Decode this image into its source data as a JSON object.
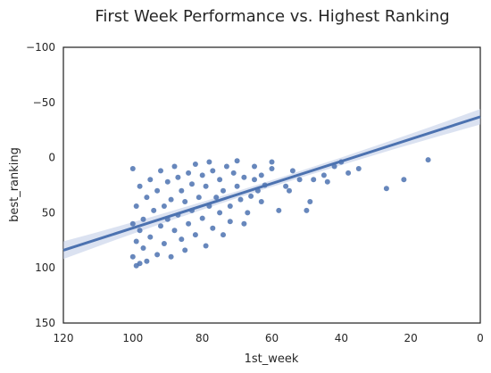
{
  "chart_data": {
    "type": "scatter",
    "title": "First Week Performance vs. Highest Ranking",
    "xlabel": "1st_week",
    "ylabel": "best_ranking",
    "xlim": [
      120,
      0
    ],
    "ylim": [
      150,
      -100
    ],
    "x_inverted": true,
    "y_inverted": true,
    "x_ticks": [
      120,
      100,
      80,
      60,
      40,
      20,
      0
    ],
    "y_ticks": [
      -100,
      -50,
      0,
      50,
      100,
      150
    ],
    "grid": false,
    "legend": "none",
    "colors": {
      "points": "#4c72b0",
      "regression_line": "#4c72b0",
      "confidence_band": "#c8d3ea"
    },
    "regression": {
      "x": [
        120,
        0
      ],
      "y": [
        84,
        -37
      ],
      "ci_half_width_at_ends": [
        8,
        7
      ],
      "ci_half_width_at_center": 3
    },
    "points": [
      [
        15,
        2
      ],
      [
        22,
        20
      ],
      [
        27,
        28
      ],
      [
        35,
        10
      ],
      [
        38,
        14
      ],
      [
        40,
        4
      ],
      [
        42,
        8
      ],
      [
        44,
        22
      ],
      [
        45,
        16
      ],
      [
        48,
        20
      ],
      [
        49,
        40
      ],
      [
        50,
        48
      ],
      [
        52,
        20
      ],
      [
        54,
        12
      ],
      [
        55,
        30
      ],
      [
        56,
        26
      ],
      [
        58,
        48
      ],
      [
        60,
        4
      ],
      [
        60,
        10
      ],
      [
        62,
        25
      ],
      [
        63,
        16
      ],
      [
        63,
        40
      ],
      [
        64,
        30
      ],
      [
        65,
        8
      ],
      [
        65,
        20
      ],
      [
        66,
        35
      ],
      [
        67,
        50
      ],
      [
        68,
        18
      ],
      [
        68,
        60
      ],
      [
        69,
        38
      ],
      [
        70,
        3
      ],
      [
        70,
        26
      ],
      [
        71,
        14
      ],
      [
        72,
        44
      ],
      [
        72,
        58
      ],
      [
        73,
        8
      ],
      [
        74,
        30
      ],
      [
        74,
        70
      ],
      [
        75,
        20
      ],
      [
        75,
        50
      ],
      [
        76,
        36
      ],
      [
        77,
        12
      ],
      [
        77,
        64
      ],
      [
        78,
        4
      ],
      [
        78,
        44
      ],
      [
        79,
        26
      ],
      [
        79,
        80
      ],
      [
        80,
        16
      ],
      [
        80,
        55
      ],
      [
        81,
        36
      ],
      [
        82,
        6
      ],
      [
        82,
        70
      ],
      [
        83,
        24
      ],
      [
        83,
        48
      ],
      [
        84,
        14
      ],
      [
        84,
        60
      ],
      [
        85,
        40
      ],
      [
        85,
        84
      ],
      [
        86,
        30
      ],
      [
        86,
        74
      ],
      [
        87,
        18
      ],
      [
        87,
        52
      ],
      [
        88,
        8
      ],
      [
        88,
        66
      ],
      [
        89,
        38
      ],
      [
        89,
        90
      ],
      [
        90,
        22
      ],
      [
        90,
        56
      ],
      [
        91,
        44
      ],
      [
        91,
        78
      ],
      [
        92,
        12
      ],
      [
        92,
        62
      ],
      [
        93,
        30
      ],
      [
        93,
        88
      ],
      [
        94,
        48
      ],
      [
        95,
        20
      ],
      [
        95,
        72
      ],
      [
        96,
        36
      ],
      [
        96,
        94
      ],
      [
        97,
        56
      ],
      [
        97,
        82
      ],
      [
        98,
        26
      ],
      [
        98,
        66
      ],
      [
        98,
        96
      ],
      [
        99,
        44
      ],
      [
        99,
        76
      ],
      [
        99,
        98
      ],
      [
        100,
        10
      ],
      [
        100,
        60
      ],
      [
        100,
        90
      ]
    ]
  }
}
